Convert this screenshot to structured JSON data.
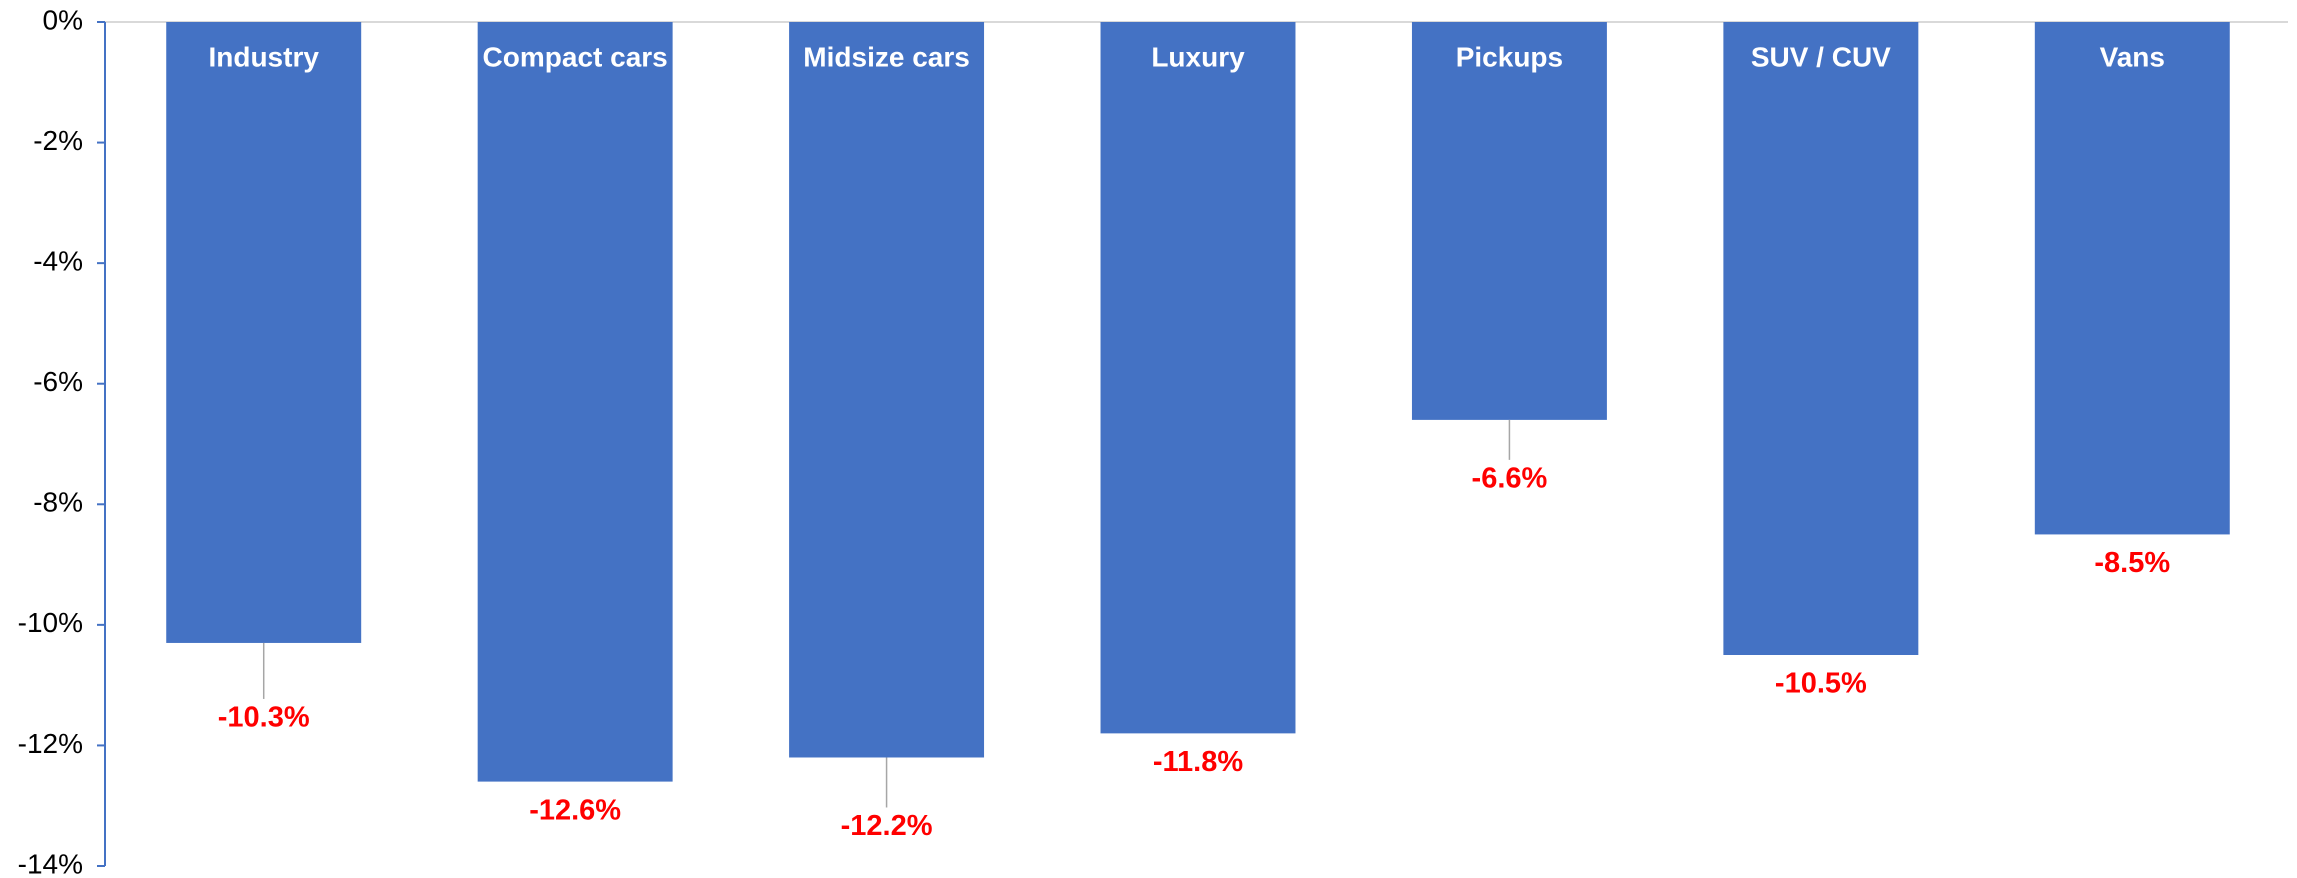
{
  "chart_data": {
    "type": "bar",
    "categories": [
      "Industry",
      "Compact cars",
      "Midsize cars",
      "Luxury",
      "Pickups",
      "SUV / CUV",
      "Vans"
    ],
    "values": [
      -10.3,
      -12.6,
      -12.2,
      -11.8,
      -6.6,
      -10.5,
      -8.5
    ],
    "value_labels": [
      "-10.3%",
      "-12.6%",
      "-12.2%",
      "-11.8%",
      "-6.6%",
      "-10.5%",
      "-8.5%"
    ],
    "color": "#4472c4",
    "value_label_color": "#ff0000",
    "ylim": [
      -14,
      0
    ],
    "yticks": [
      {
        "value": 0,
        "label": "0%"
      },
      {
        "value": -2,
        "label": "-2%"
      },
      {
        "value": -4,
        "label": "-4%"
      },
      {
        "value": -6,
        "label": "-6%"
      },
      {
        "value": -8,
        "label": "-8%"
      },
      {
        "value": -10,
        "label": "-10%"
      },
      {
        "value": -12,
        "label": "-12%"
      },
      {
        "value": -14,
        "label": "-14%"
      }
    ],
    "grid": false
  }
}
